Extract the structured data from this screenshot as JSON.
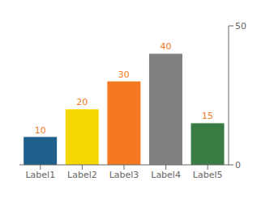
{
  "chart_data": {
    "type": "bar",
    "categories": [
      "Label1",
      "Label2",
      "Label3",
      "Label4",
      "Label5"
    ],
    "values": [
      10,
      20,
      30,
      40,
      15
    ],
    "colors": [
      "#1f5f8b",
      "#f5d800",
      "#f47920",
      "#808080",
      "#3a7d44"
    ],
    "ylim": [
      0,
      50
    ],
    "yticks": [
      0,
      50
    ],
    "grid": false,
    "data_labels": true
  }
}
